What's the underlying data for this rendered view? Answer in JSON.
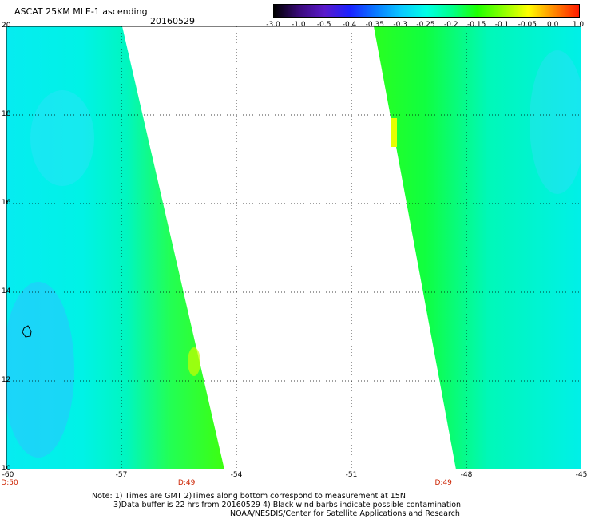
{
  "header": {
    "title": "ASCAT 25KM MLE-1 ascending",
    "date": "20160529"
  },
  "colorbar": {
    "tick_labels": [
      "-3.0",
      "-1.0",
      "-0.5",
      "-0.4",
      "-0.35",
      "-0.3",
      "-0.25",
      "-0.2",
      "-0.15",
      "-0.1",
      "-0.05",
      "0.0",
      "1.0"
    ],
    "colors": [
      "#000000",
      "#3a0a7a",
      "#5a1acb",
      "#1a22ff",
      "#0a7aff",
      "#0ac8ff",
      "#00ffe6",
      "#00ff8a",
      "#1eff00",
      "#8aff00",
      "#ffff00",
      "#ff8a00",
      "#ff1a00"
    ]
  },
  "map": {
    "y_ticks": [
      "20",
      "18",
      "16",
      "14",
      "12",
      "10"
    ],
    "x_ticks": [
      "-60",
      "-57",
      "-54",
      "-51",
      "-48",
      "-45"
    ],
    "lon_range": [
      -60,
      -45
    ],
    "lat_range": [
      10,
      20
    ],
    "time_labels": [
      {
        "text": "D:50",
        "lon": -60
      },
      {
        "text": "D:49",
        "lon": -55.3
      },
      {
        "text": "D:49",
        "lon": -48.6
      }
    ],
    "swaths": [
      {
        "name": "left-swath",
        "west_lon": -60,
        "east_edge_top_lon": -56.9,
        "east_edge_bottom_lon": -54.4
      },
      {
        "name": "right-swath",
        "west_edge_top_lon": -50.6,
        "west_edge_bottom_lon": -48.3,
        "east_lon": -45
      }
    ],
    "grid": "dotted"
  },
  "footer": {
    "note1": "Note: 1) Times are GMT 2)Times along bottom correspond to measurement at 15N",
    "note2": "3)Data buffer is 22 hrs from 20160529 4) Black wind barbs indicate possible contamination",
    "credit": "NOAA/NESDIS/Center for Satellite Applications and Research"
  }
}
